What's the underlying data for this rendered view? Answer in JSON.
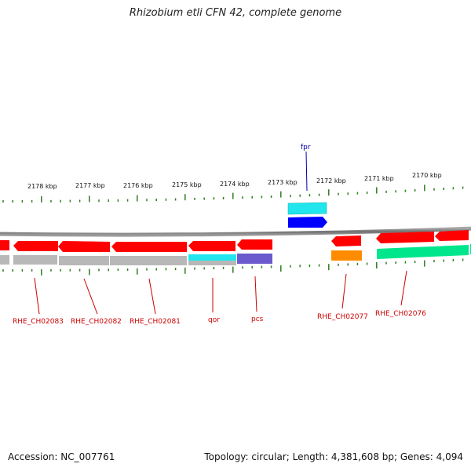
{
  "title": "Rhizobium etli CFN 42, complete genome",
  "accession_text": "Accession: NC_007761",
  "topology_text": "Topology: circular; Length: 4,381,608 bp; Genes: 4,094",
  "colors": {
    "tick": "#2e7d1e",
    "backbone": "#808080",
    "label_red": "#cc0000",
    "label_blue": "#0000aa",
    "gene_red": "#ff0000",
    "gene_gray": "#b8b8b8",
    "gene_cyan": "#22e6ee",
    "gene_blue": "#0000ff",
    "gene_purple": "#6a5acd",
    "gene_orange": "#ff8c00",
    "gene_green": "#00e68c"
  },
  "scale_labels": [
    "2178 kbp",
    "2177 kbp",
    "2176 kbp",
    "2175 kbp",
    "2174 kbp",
    "2173 kbp",
    "2172 kbp",
    "2171 kbp",
    "2170 kbp"
  ],
  "gene_labels": [
    {
      "text": "RHE_CH02083",
      "color": "red"
    },
    {
      "text": "RHE_CH02082",
      "color": "red"
    },
    {
      "text": "RHE_CH02081",
      "color": "red"
    },
    {
      "text": "qor",
      "color": "red"
    },
    {
      "text": "pcs",
      "color": "red"
    },
    {
      "text": "RHE_CH02077",
      "color": "red"
    },
    {
      "text": "RHE_CH02076",
      "color": "red"
    },
    {
      "text": "fpr",
      "color": "blue"
    }
  ]
}
